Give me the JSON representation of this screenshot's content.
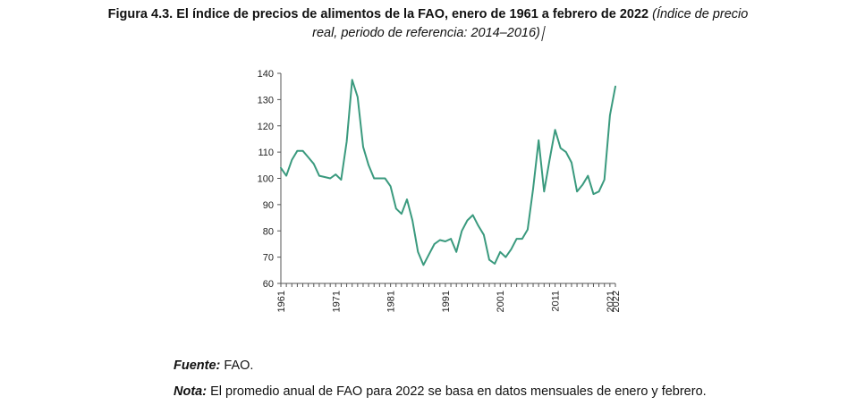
{
  "figure": {
    "number": "Figura 4.3.",
    "title_bold": "El índice de precios de alimentos de la FAO, enero de 1961 a febrero de 2022",
    "title_italic_line1": "(Índice de precio",
    "title_italic_line2": "real, periodo de referencia: 2014–2016)"
  },
  "chart_data": {
    "type": "line",
    "title": "",
    "xlabel": "",
    "ylabel": "",
    "xlim": [
      1961,
      2022
    ],
    "ylim": [
      60,
      140
    ],
    "y_ticks": [
      60,
      70,
      80,
      90,
      100,
      110,
      120,
      130,
      140
    ],
    "x_tick_labels": [
      "1961",
      "1971",
      "1981",
      "1991",
      "2001",
      "2011",
      "2021",
      "2022"
    ],
    "x_tick_values": [
      1961,
      1971,
      1981,
      1991,
      2001,
      2011,
      2021,
      2022
    ],
    "grid": false,
    "color": "#3a9a7e",
    "series": [
      {
        "x": [
          1961,
          1962,
          1963,
          1964,
          1965,
          1966,
          1967,
          1968,
          1969,
          1970,
          1971,
          1972,
          1973,
          1974,
          1975,
          1976,
          1977,
          1978,
          1979,
          1980,
          1981,
          1982,
          1983,
          1984,
          1985,
          1986,
          1987,
          1988,
          1989,
          1990,
          1991,
          1992,
          1993,
          1994,
          1995,
          1996,
          1997,
          1998,
          1999,
          2000,
          2001,
          2002,
          2003,
          2004,
          2005,
          2006,
          2007,
          2008,
          2009,
          2010,
          2011,
          2012,
          2013,
          2014,
          2015,
          2016,
          2017,
          2018,
          2019,
          2020,
          2021,
          2022
        ],
        "y": [
          104,
          101,
          107,
          110.5,
          110.5,
          108,
          105.5,
          101,
          100.5,
          100,
          101.5,
          99.5,
          114,
          137.5,
          131,
          112,
          105,
          100,
          100,
          100,
          97,
          88.5,
          86.5,
          92,
          84,
          72,
          67,
          71,
          75,
          76.5,
          76,
          77,
          72,
          80,
          84,
          86,
          82,
          78.5,
          69,
          67.5,
          72,
          70,
          73,
          77,
          77,
          80.5,
          96,
          114.5,
          95,
          107,
          118.5,
          111.5,
          110,
          106,
          95,
          97.5,
          101,
          94,
          95,
          99.5,
          124,
          135
        ]
      }
    ]
  },
  "source": {
    "label": "Fuente:",
    "text": " FAO."
  },
  "note": {
    "label": "Nota:",
    "text": " El promedio anual de FAO para 2022 se basa en datos mensuales de enero y febrero."
  }
}
